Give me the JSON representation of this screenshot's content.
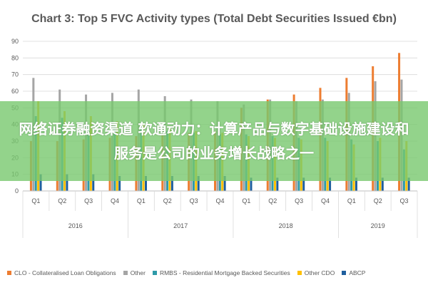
{
  "banner": {
    "text": "网络证券融资渠道 软通动力：计算产品与数字基础设施建设和服务是公司的业务增长战略之一"
  },
  "chart_data": {
    "type": "bar",
    "title": "Chart 3: Top 5 FVC Activity types (Total Debt Securities Issued €bn)",
    "ylim": [
      0,
      90
    ],
    "yticks": [
      0,
      10,
      20,
      30,
      40,
      50,
      60,
      70,
      80,
      90
    ],
    "grid": true,
    "legend_position": "bottom",
    "categories": [
      "Q1",
      "Q2",
      "Q3",
      "Q4",
      "Q1",
      "Q2",
      "Q3",
      "Q4",
      "Q1",
      "Q2",
      "Q3",
      "Q4",
      "Q1",
      "Q2",
      "Q3"
    ],
    "groups": [
      {
        "label": "2016",
        "count": 4
      },
      {
        "label": "2017",
        "count": 4
      },
      {
        "label": "2018",
        "count": 4
      },
      {
        "label": "2019",
        "count": 3
      }
    ],
    "series": [
      {
        "name": "CLO - Collateralised Loan Obligations",
        "color": "#ED7D31",
        "values": [
          30,
          30,
          31,
          32,
          33,
          34,
          35,
          36,
          50,
          55,
          58,
          62,
          68,
          75,
          83
        ]
      },
      {
        "name": "Other",
        "color": "#A5A5A5",
        "values": [
          68,
          61,
          58,
          59,
          61,
          57,
          55,
          54,
          52,
          55,
          54,
          55,
          59,
          66,
          67
        ]
      },
      {
        "name": "RMBS - Residential Mortgage Backed Securities",
        "color": "#2E9AA8",
        "values": [
          45,
          44,
          40,
          39,
          39,
          36,
          35,
          34,
          34,
          33,
          32,
          32,
          31,
          30,
          25
        ]
      },
      {
        "name": "Other CDO",
        "color": "#FFC000",
        "values": [
          54,
          48,
          45,
          42,
          40,
          38,
          36,
          35,
          33,
          32,
          31,
          30,
          28,
          32,
          30
        ]
      },
      {
        "name": "ABCP",
        "color": "#1F5F9E",
        "values": [
          10,
          10,
          10,
          9,
          9,
          9,
          9,
          9,
          8,
          8,
          8,
          8,
          8,
          8,
          8
        ]
      }
    ]
  }
}
